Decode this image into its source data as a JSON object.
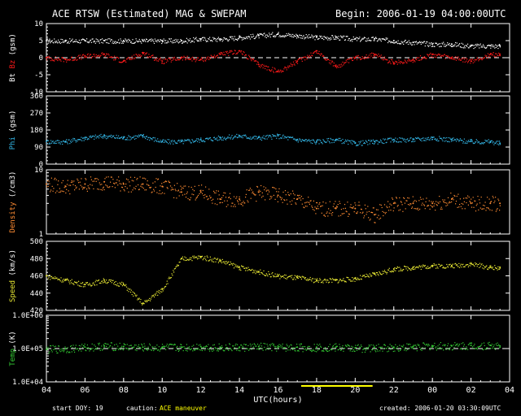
{
  "header": {
    "title": "ACE RTSW (Estimated) MAG & SWEPAM",
    "begin": "Begin: 2006-01-19 04:00:00UTC"
  },
  "footer": {
    "start_doy_label": "start DOY:",
    "start_doy_value": "19",
    "caution_label": "caution:",
    "caution_value": "ACE maneuver",
    "created": "created: 2006-01-20 03:30:09UTC"
  },
  "colors": {
    "bt": "#ffffff",
    "bz": "#ff1a1a",
    "phi": "#33b6e6",
    "density": "#ff8c33",
    "speed": "#e6e633",
    "temp": "#33cc33",
    "maneuver_bar": "#ffff00"
  },
  "chart_data": {
    "type": "scatter",
    "xlabel": "UTC(hours)",
    "xticks": [
      "04",
      "06",
      "08",
      "10",
      "12",
      "14",
      "16",
      "18",
      "20",
      "22",
      "00",
      "02",
      "04"
    ],
    "xrange_hours": [
      4,
      28
    ],
    "maneuver_hours": [
      17.2,
      20.9
    ],
    "panels": [
      {
        "id": "mag",
        "ylabel_parts": [
          "Bt",
          "Bz",
          "(gsm)"
        ],
        "ylim": [
          -10,
          10
        ],
        "yticks": [
          "10",
          "5",
          "0",
          "-5",
          "-10"
        ],
        "ytick_values": [
          10,
          5,
          0,
          -5,
          -10
        ],
        "log": false,
        "dashed_line": 0,
        "series": [
          {
            "name": "Bt",
            "color_key": "bt",
            "x": [
              4,
              5,
              6,
              7,
              8,
              9,
              10,
              11,
              12,
              13,
              14,
              15,
              16,
              17,
              18,
              19,
              20,
              21,
              22,
              23,
              24,
              25,
              26,
              27,
              27.5
            ],
            "values": [
              5,
              5,
              5,
              5,
              5,
              5,
              5,
              5,
              5.5,
              5.5,
              6,
              6.5,
              7,
              6.5,
              6,
              6,
              5.5,
              5.5,
              5,
              4.5,
              4,
              4,
              3.5,
              3.5,
              3.5
            ]
          },
          {
            "name": "Bz",
            "color_key": "bz",
            "x": [
              4,
              5,
              6,
              7,
              8,
              9,
              10,
              11,
              12,
              13,
              14,
              15,
              16,
              17,
              18,
              19,
              20,
              21,
              22,
              23,
              24,
              25,
              26,
              27,
              27.5
            ],
            "values": [
              0,
              -0.5,
              0.5,
              1,
              -1,
              1.5,
              -1,
              0,
              -0.5,
              1,
              2,
              -2,
              -4,
              -1,
              2,
              -2.5,
              0,
              1,
              -1.5,
              -0.5,
              1,
              0,
              -1,
              1,
              1
            ]
          }
        ]
      },
      {
        "id": "phi",
        "ylabel_parts": [
          "Phi",
          "(gsm)"
        ],
        "ylim": [
          0,
          360
        ],
        "yticks": [
          "360",
          "270",
          "180",
          "90",
          "0"
        ],
        "ytick_values": [
          360,
          270,
          180,
          90,
          0
        ],
        "log": false,
        "series": [
          {
            "name": "Phi",
            "color_key": "phi",
            "x": [
              4,
              5,
              6,
              7,
              8,
              9,
              10,
              11,
              12,
              13,
              14,
              15,
              16,
              17,
              18,
              19,
              20,
              21,
              22,
              23,
              24,
              25,
              26,
              27,
              27.5
            ],
            "values": [
              120,
              120,
              140,
              150,
              140,
              150,
              120,
              120,
              130,
              140,
              150,
              140,
              150,
              130,
              120,
              130,
              110,
              120,
              130,
              130,
              140,
              130,
              120,
              120,
              110
            ]
          }
        ]
      },
      {
        "id": "density",
        "ylabel_parts": [
          "Density",
          "(/cm3)"
        ],
        "ylim": [
          1,
          10
        ],
        "yticks": [
          "10",
          "1"
        ],
        "ytick_values": [
          10,
          1
        ],
        "log": true,
        "series": [
          {
            "name": "Density",
            "color_key": "density",
            "x": [
              4,
              5,
              6,
              7,
              8,
              9,
              10,
              11,
              12,
              13,
              14,
              15,
              16,
              17,
              18,
              19,
              20,
              21,
              22,
              23,
              24,
              25,
              26,
              27,
              27.5
            ],
            "values": [
              6,
              5.5,
              6,
              6.5,
              6,
              6,
              5.5,
              4.5,
              4.5,
              3.5,
              3.5,
              4.5,
              4,
              3.5,
              2.5,
              2.5,
              2.5,
              2,
              3,
              3,
              3,
              3.5,
              3,
              3,
              3
            ]
          }
        ]
      },
      {
        "id": "speed",
        "ylabel_parts": [
          "Speed",
          "(km/s)"
        ],
        "ylim": [
          420,
          500
        ],
        "yticks": [
          "500",
          "480",
          "460",
          "440",
          "420"
        ],
        "ytick_values": [
          500,
          480,
          460,
          440,
          420
        ],
        "log": false,
        "series": [
          {
            "name": "Speed",
            "color_key": "speed",
            "x": [
              4,
              5,
              6,
              7,
              8,
              9,
              10,
              11,
              12,
              13,
              14,
              15,
              16,
              17,
              18,
              19,
              20,
              21,
              22,
              23,
              24,
              25,
              26,
              27,
              27.5
            ],
            "values": [
              460,
              455,
              450,
              455,
              450,
              428,
              445,
              480,
              482,
              478,
              470,
              465,
              460,
              458,
              455,
              455,
              457,
              462,
              468,
              470,
              472,
              472,
              474,
              470,
              470
            ]
          }
        ]
      },
      {
        "id": "temp",
        "ylabel_parts": [
          "Temp",
          "(K)"
        ],
        "ylim": [
          10000,
          1000000
        ],
        "yticks": [
          "1.0E+06",
          "1.0E+05",
          "1.0E+04"
        ],
        "ytick_values": [
          1000000,
          100000,
          10000
        ],
        "log": true,
        "dashed_line": 100000,
        "series": [
          {
            "name": "Temp",
            "color_key": "temp",
            "x": [
              4,
              5,
              6,
              7,
              8,
              9,
              10,
              11,
              12,
              13,
              14,
              15,
              16,
              17,
              18,
              19,
              20,
              21,
              22,
              23,
              24,
              25,
              26,
              27,
              27.5
            ],
            "values": [
              95000,
              100000,
              110000,
              120000,
              115000,
              110000,
              110000,
              110000,
              115000,
              110000,
              110000,
              115000,
              110000,
              110000,
              110000,
              110000,
              105000,
              105000,
              110000,
              115000,
              120000,
              120000,
              125000,
              125000,
              120000
            ]
          }
        ]
      }
    ]
  }
}
